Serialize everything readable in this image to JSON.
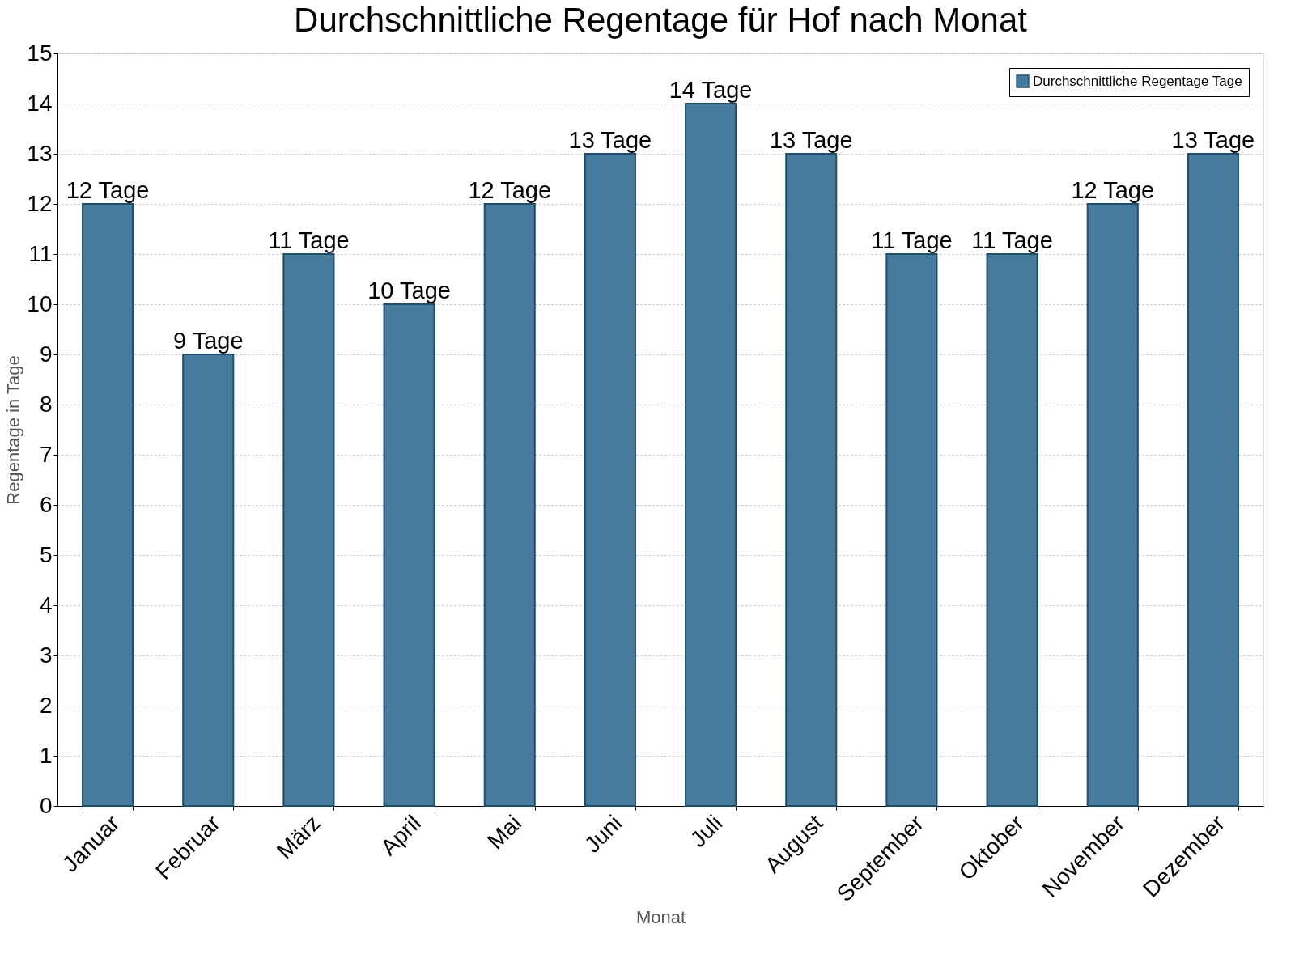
{
  "chart_data": {
    "type": "bar",
    "title": "Durchschnittliche Regentage für Hof nach Monat",
    "xlabel": "Monat",
    "ylabel": "Regentage in Tage",
    "categories": [
      "Januar",
      "Februar",
      "März",
      "April",
      "Mai",
      "Juni",
      "Juli",
      "August",
      "September",
      "Oktober",
      "November",
      "Dezember"
    ],
    "series": [
      {
        "name": "Durchschnittliche Regentage Tage",
        "color": "#457b9d",
        "values": [
          12,
          9,
          11,
          10,
          12,
          13,
          14,
          13,
          11,
          11,
          12,
          13
        ],
        "value_labels": [
          "12 Tage",
          "9 Tage",
          "11 Tage",
          "10 Tage",
          "12 Tage",
          "13 Tage",
          "14 Tage",
          "13 Tage",
          "11 Tage",
          "11 Tage",
          "12 Tage",
          "13 Tage"
        ]
      }
    ],
    "ylim": [
      0,
      15
    ],
    "yticks": [
      0,
      1,
      2,
      3,
      4,
      5,
      6,
      7,
      8,
      9,
      10,
      11,
      12,
      13,
      14,
      15
    ],
    "grid": "y",
    "legend": "top right"
  }
}
